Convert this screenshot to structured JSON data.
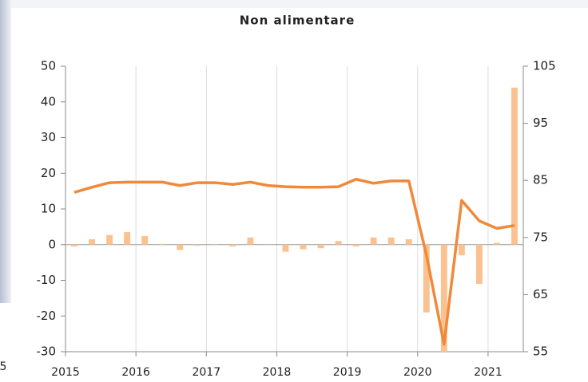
{
  "chart_data": {
    "type": "combo",
    "title": "Non alimentare",
    "edge_text": "5",
    "x": [
      2015.125,
      2015.375,
      2015.625,
      2015.875,
      2016.125,
      2016.375,
      2016.625,
      2016.875,
      2017.125,
      2017.375,
      2017.625,
      2017.875,
      2018.125,
      2018.375,
      2018.625,
      2018.875,
      2019.125,
      2019.375,
      2019.625,
      2019.875,
      2020.125,
      2020.375,
      2020.625,
      2020.875,
      2021.125,
      2021.375
    ],
    "xlim": [
      2015,
      2021.5
    ],
    "xticks": [
      2015,
      2016,
      2017,
      2018,
      2019,
      2020,
      2021
    ],
    "ylim": [
      -30,
      50
    ],
    "yticks": [
      -30,
      -20,
      -10,
      0,
      10,
      20,
      30,
      40,
      50
    ],
    "y2lim": [
      55,
      105
    ],
    "y2ticks": [
      55,
      65,
      75,
      85,
      95,
      105
    ],
    "grid": "x",
    "series": [
      {
        "type": "bar",
        "axis": "y",
        "color": "#f9c290",
        "values": [
          -0.5,
          1.5,
          2.7,
          3.5,
          2.4,
          0.2,
          -1.5,
          -0.3,
          0,
          -0.5,
          2,
          0,
          -2,
          -1.3,
          -1,
          1,
          -0.5,
          2,
          2,
          1.5,
          -19,
          -30,
          -3,
          -11,
          0.5,
          44
        ]
      },
      {
        "type": "line",
        "axis": "y2",
        "color": "#f0893a",
        "values": [
          82.9,
          83.8,
          84.6,
          84.7,
          84.7,
          84.7,
          84.1,
          84.6,
          84.6,
          84.3,
          84.7,
          84.1,
          83.9,
          83.8,
          83.8,
          83.9,
          85.2,
          84.5,
          84.9,
          84.9,
          71.9,
          56.3,
          81.5,
          77.9,
          76.6,
          77.1
        ]
      }
    ]
  }
}
